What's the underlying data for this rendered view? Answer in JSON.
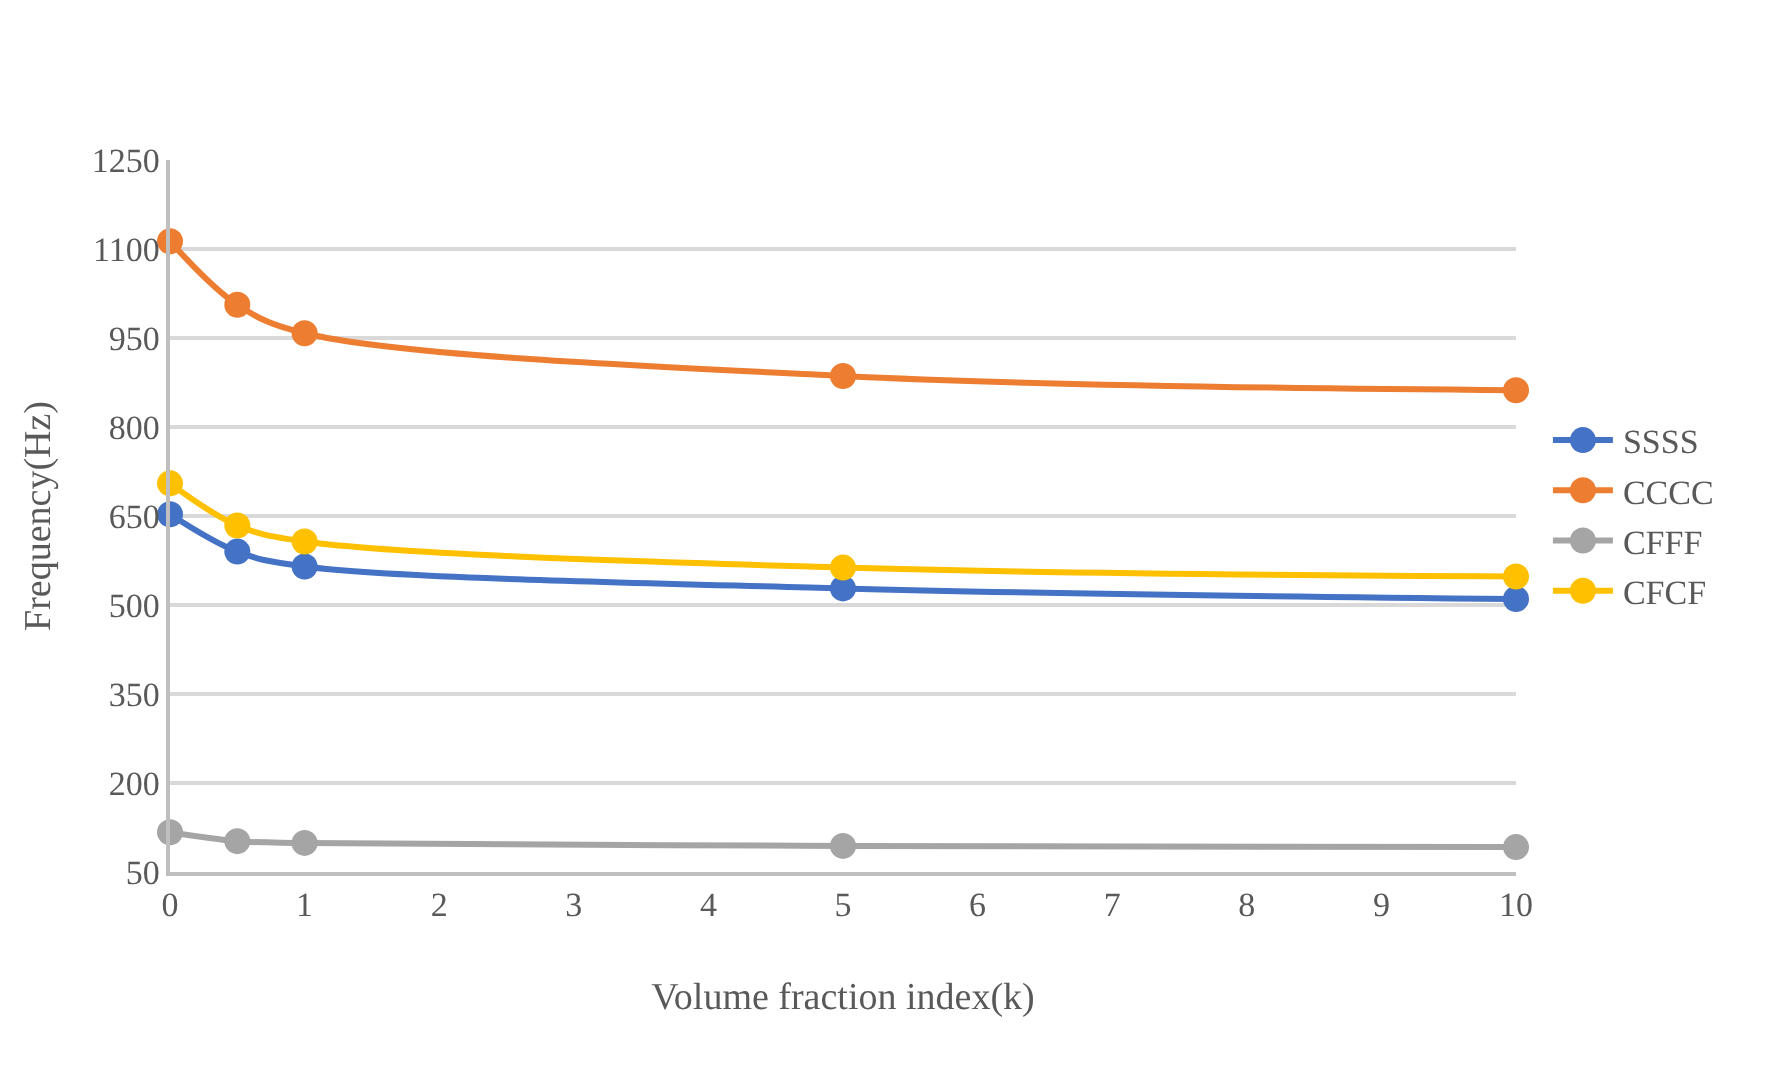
{
  "chart_data": {
    "type": "line",
    "xlabel": "Volume fraction index(k)",
    "ylabel": "Frequency(Hz)",
    "x": [
      0,
      0.5,
      1,
      5,
      10
    ],
    "series": [
      {
        "name": "SSSS",
        "color": "#4472c4",
        "values": [
          653,
          590,
          565,
          528,
          510
        ]
      },
      {
        "name": "CCCC",
        "color": "#ed7d31",
        "values": [
          1113,
          1006,
          958,
          886,
          862
        ]
      },
      {
        "name": "CFFF",
        "color": "#a5a5a5",
        "values": [
          117,
          102,
          99,
          94,
          92
        ]
      },
      {
        "name": "CFCF",
        "color": "#ffc000",
        "values": [
          705,
          634,
          607,
          563,
          548
        ]
      }
    ],
    "xlim": [
      0,
      10
    ],
    "xticks": [
      0,
      1,
      2,
      3,
      4,
      5,
      6,
      7,
      8,
      9,
      10
    ],
    "ylim": [
      50,
      1250
    ],
    "yticks": [
      50,
      200,
      350,
      500,
      650,
      800,
      950,
      1100,
      1250
    ],
    "grid": "y",
    "legend": "right",
    "marker": "circle",
    "line_style": "solid"
  }
}
